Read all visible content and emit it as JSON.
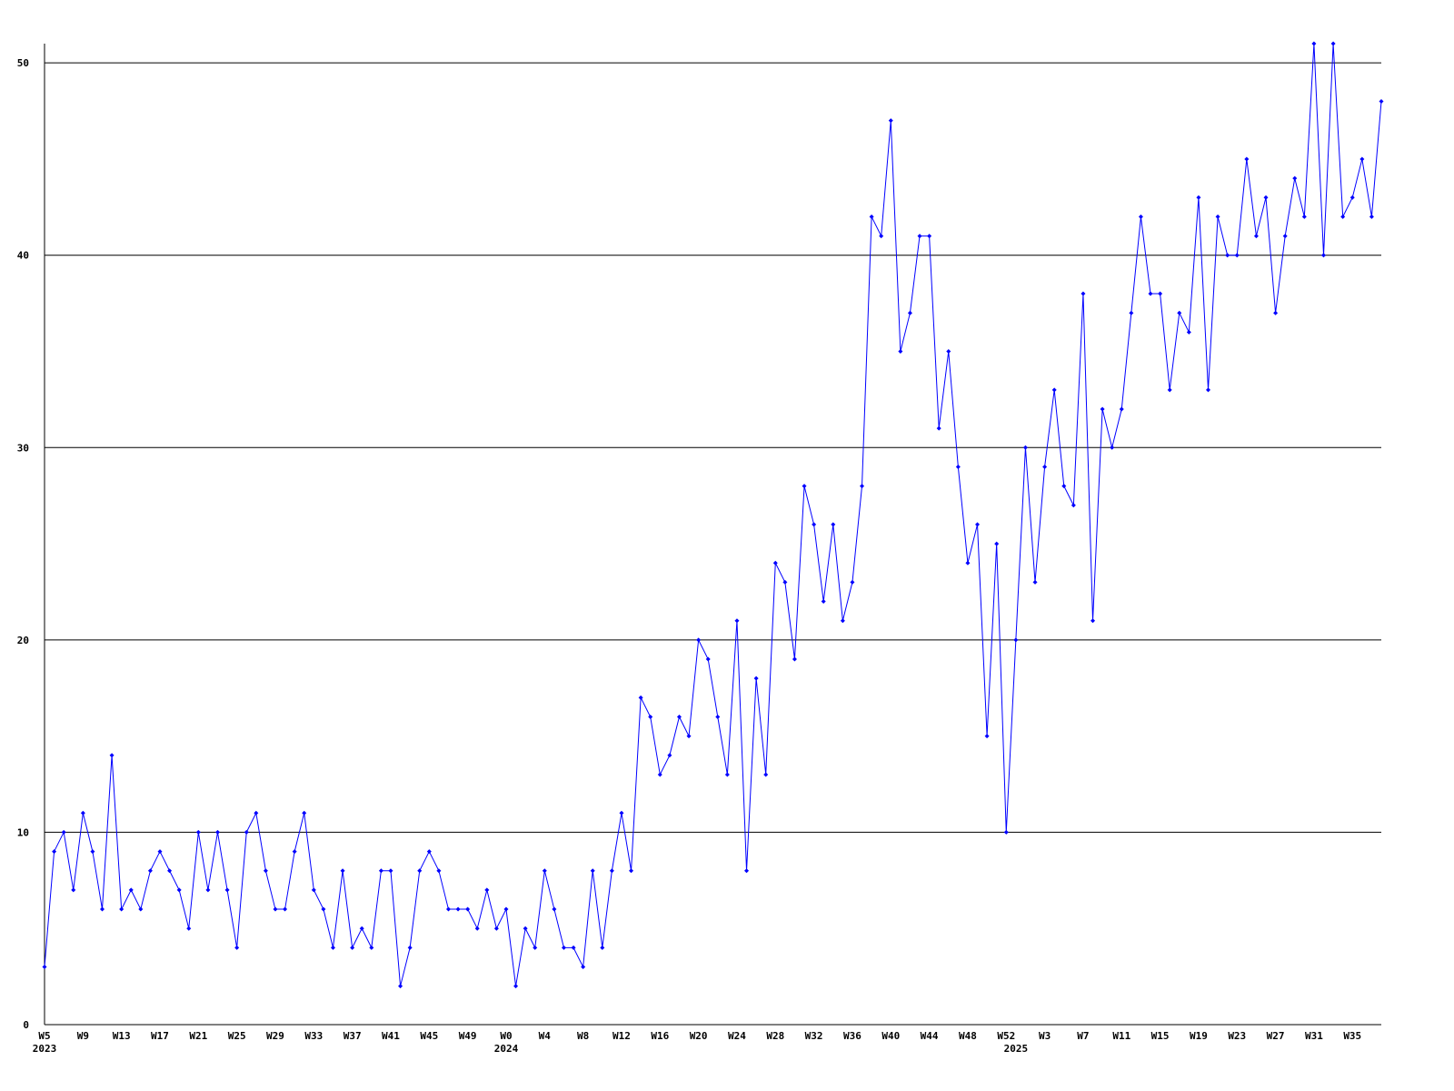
{
  "chart_data": {
    "type": "line",
    "categories": [
      "W5",
      null,
      null,
      null,
      "W9",
      null,
      null,
      null,
      "W13",
      null,
      null,
      null,
      "W17",
      null,
      null,
      null,
      "W21",
      null,
      null,
      null,
      "W25",
      null,
      null,
      null,
      "W29",
      null,
      null,
      null,
      "W33",
      null,
      null,
      null,
      "W37",
      null,
      null,
      null,
      "W41",
      null,
      null,
      null,
      "W45",
      null,
      null,
      null,
      "W49",
      null,
      null,
      null,
      "W0",
      null,
      null,
      null,
      "W4",
      null,
      null,
      null,
      "W8",
      null,
      null,
      null,
      "W12",
      null,
      null,
      null,
      "W16",
      null,
      null,
      null,
      "W20",
      null,
      null,
      null,
      "W24",
      null,
      null,
      null,
      "W28",
      null,
      null,
      null,
      "W32",
      null,
      null,
      null,
      "W36",
      null,
      null,
      null,
      "W40",
      null,
      null,
      null,
      "W44",
      null,
      null,
      null,
      "W48",
      null,
      null,
      null,
      "W52",
      null,
      null,
      null,
      "W3",
      null,
      null,
      null,
      "W7",
      null,
      null,
      null,
      "W11",
      null,
      null,
      null,
      "W15",
      null,
      null,
      null,
      "W19",
      null,
      null,
      null,
      "W23",
      null,
      null,
      null,
      "W27",
      null,
      null,
      null,
      "W31",
      null,
      null,
      null,
      "W35",
      null,
      null,
      null
    ],
    "year_labels": [
      {
        "category": 0,
        "label": "2023"
      },
      {
        "category": 48,
        "label": "2024"
      },
      {
        "category": 101,
        "label": "2025"
      }
    ],
    "series": [
      {
        "color": "#0000ff",
        "values": [
          3,
          9,
          10,
          7,
          11,
          9,
          6,
          14,
          6,
          7,
          6,
          8,
          9,
          8,
          7,
          5,
          10,
          7,
          10,
          7,
          4,
          10,
          11,
          8,
          6,
          6,
          9,
          11,
          7,
          6,
          4,
          8,
          4,
          5,
          4,
          8,
          8,
          2,
          4,
          8,
          9,
          8,
          6,
          6,
          6,
          5,
          7,
          5,
          6,
          2,
          5,
          4,
          8,
          6,
          4,
          4,
          3,
          8,
          4,
          8,
          11,
          8,
          17,
          16,
          13,
          14,
          16,
          15,
          20,
          19,
          16,
          13,
          21,
          8,
          18,
          13,
          24,
          23,
          19,
          28,
          26,
          22,
          26,
          21,
          23,
          28,
          42,
          41,
          47,
          35,
          37,
          41,
          41,
          31,
          35,
          29,
          24,
          26,
          15,
          25,
          10,
          20,
          30,
          23,
          29,
          33,
          28,
          27,
          38,
          21,
          32,
          30,
          32,
          37,
          42,
          38,
          38,
          33,
          37,
          36,
          43,
          33,
          42,
          40,
          40,
          45,
          41,
          43,
          37,
          41,
          44,
          42,
          51,
          40,
          51,
          42,
          43,
          45,
          42,
          48
        ]
      }
    ],
    "ylim": [
      0,
      51
    ],
    "yticks": [
      0,
      10,
      20,
      30,
      40,
      50
    ],
    "grid": true,
    "grid_color": "#000000"
  }
}
